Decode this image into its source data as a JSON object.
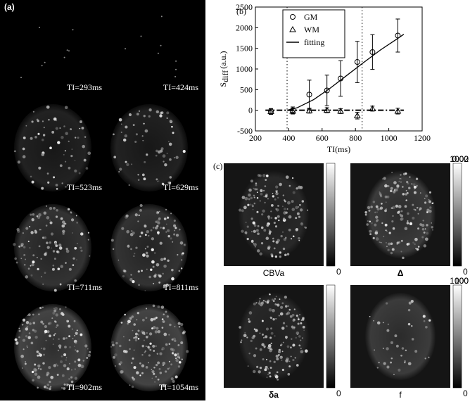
{
  "panels": {
    "a": "(a)",
    "b": "(b)",
    "c": "(c)"
  },
  "panel_a": {
    "labels": [
      "TI=293ms",
      "TI=424ms",
      "TI=523ms",
      "TI=629ms",
      "TI=711ms",
      "TI=811ms",
      "TI=902ms",
      "TI=1054ms"
    ]
  },
  "chart_data": {
    "type": "errorbar",
    "xlabel": "TI(ms)",
    "ylabel": "S",
    "ylabel_sub": "diff",
    "ylabel_unit": "(a.u.)",
    "xlim": [
      200,
      1200
    ],
    "xticks": [
      200,
      400,
      600,
      800,
      1000,
      1200
    ],
    "ylim": [
      -500,
      2500
    ],
    "yticks": [
      -500,
      0,
      500,
      1000,
      1500,
      2000,
      2500
    ],
    "vlines": [
      390,
      840
    ],
    "x": [
      293,
      424,
      523,
      629,
      711,
      811,
      902,
      1054
    ],
    "series": [
      {
        "name": "GM",
        "marker": "circle",
        "color": "#000000",
        "values": [
          -20,
          0,
          380,
          480,
          770,
          1170,
          1410,
          1810
        ],
        "errors": [
          60,
          80,
          350,
          370,
          430,
          500,
          420,
          400
        ]
      },
      {
        "name": "WM",
        "marker": "triangle",
        "color": "#000000",
        "values": [
          -30,
          -20,
          -10,
          0,
          -20,
          -130,
          40,
          -20
        ],
        "errors": [
          70,
          70,
          60,
          60,
          60,
          80,
          60,
          70
        ]
      },
      {
        "name": "fitting",
        "line": "solid",
        "color": "#000000",
        "x": [
          390,
          450,
          550,
          650,
          750,
          850,
          950,
          1050,
          1090
        ],
        "values": [
          0,
          60,
          260,
          540,
          850,
          1160,
          1460,
          1730,
          1840
        ]
      },
      {
        "line": "dashdot",
        "color": "#000000",
        "x": [
          260,
          1090
        ],
        "values": [
          0,
          0
        ]
      }
    ]
  },
  "panel_c": {
    "maps": [
      {
        "label": "CBVa",
        "max": 0.02,
        "min": 0
      },
      {
        "label": "Δ",
        "max": 1000,
        "min": 0
      },
      {
        "label": "δa",
        "max": 1000,
        "min": 0
      },
      {
        "label": "f",
        "max": 100,
        "min": 0
      }
    ]
  }
}
